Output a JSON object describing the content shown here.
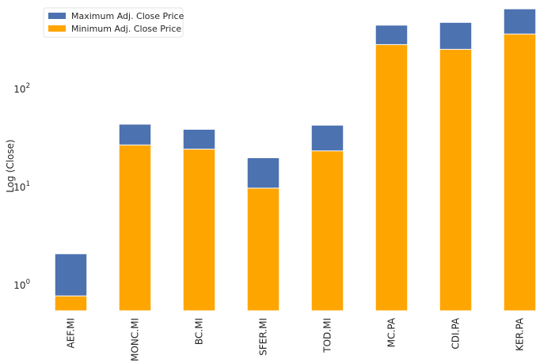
{
  "chart_data": {
    "type": "bar",
    "stacking": "overlay",
    "scale_y": "log",
    "ylabel": "Log (Close)",
    "xlabel": "",
    "title": "",
    "categories": [
      "AEF.MI",
      "MONC.MI",
      "BC.MI",
      "SFER.MI",
      "TOD.MI",
      "MC.PA",
      "CDI.PA",
      "KER.PA"
    ],
    "series": [
      {
        "name": "Maximum Adj. Close Price",
        "color": "#4c72b0",
        "values": [
          2.1,
          44,
          39,
          20,
          43,
          450,
          480,
          660
        ]
      },
      {
        "name": "Minimum Adj. Close Price",
        "color": "#ffa500",
        "values": [
          0.78,
          27,
          24.5,
          9.8,
          23.5,
          285,
          255,
          365
        ]
      }
    ],
    "ylim": [
      0.55,
      700
    ],
    "yticks": [
      {
        "value": 1,
        "base": "10",
        "exp": "0"
      },
      {
        "value": 10,
        "base": "10",
        "exp": "1"
      },
      {
        "value": 100,
        "base": "10",
        "exp": "2"
      }
    ],
    "grid": false,
    "legend_position": "top-left"
  }
}
